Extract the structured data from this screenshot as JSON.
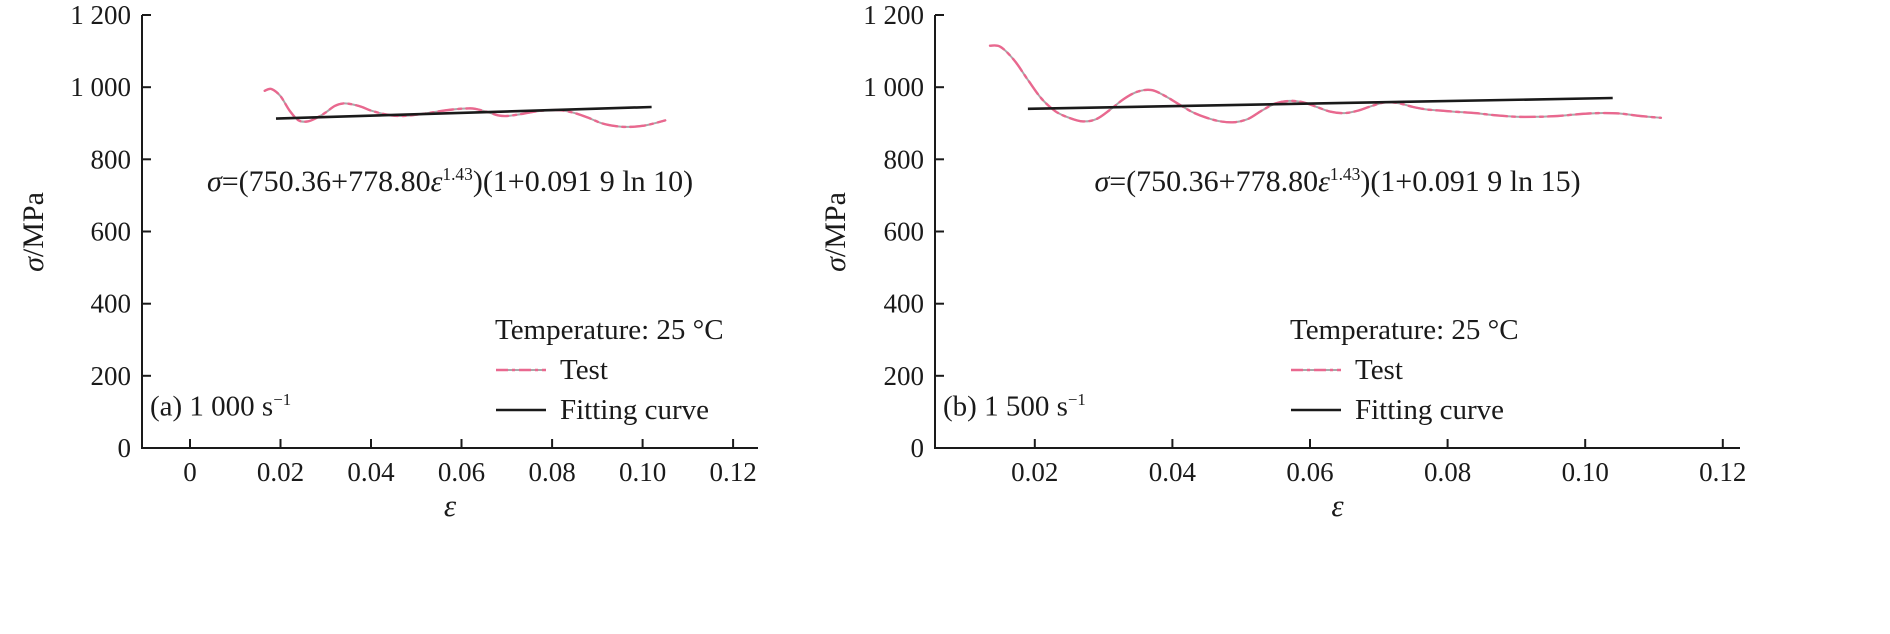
{
  "chart_data": [
    {
      "type": "line",
      "panel_label_text": "(a) 1 000 s",
      "panel_label_sup": "−1",
      "eq_sigma": "σ",
      "eq_mid": "=(750.36+778.80",
      "eq_epsilon": "ε",
      "eq_sup": "1.43",
      "eq_suffix": ")(1+0.091 9 ln 10)",
      "xlabel": "ε",
      "ylabel_symbol": "σ",
      "ylabel_unit": "/MPa",
      "xlim": [
        -0.0106,
        0.1255
      ],
      "ylim": [
        0,
        1200
      ],
      "xticks": [
        0,
        0.02,
        0.04,
        0.06,
        0.08,
        0.1,
        0.12
      ],
      "xtick_labels": [
        "0",
        "0.02",
        "0.04",
        "0.06",
        "0.08",
        "0.10",
        "0.12"
      ],
      "yticks": [
        0,
        200,
        400,
        600,
        800,
        1000,
        1200
      ],
      "ytick_labels": [
        "0",
        "200",
        "400",
        "600",
        "800",
        "1 000",
        "1 200"
      ],
      "grid": "off",
      "legend_position": "inside-bottom-right",
      "legend": {
        "temperature": "Temperature: 25 °C",
        "test": "Test",
        "fit": "Fitting curve"
      },
      "colors": {
        "test": "#e9688f",
        "test_shadow": "#a8a8a8",
        "fit": "#1a1a1a",
        "axis": "#1a1a1a"
      },
      "series": [
        {
          "name": "Test",
          "style": "dashdot",
          "x": [
            0.0165,
            0.018,
            0.02,
            0.022,
            0.024,
            0.026,
            0.028,
            0.03,
            0.032,
            0.034,
            0.036,
            0.038,
            0.04,
            0.043,
            0.046,
            0.049,
            0.052,
            0.055,
            0.058,
            0.061,
            0.063,
            0.066,
            0.068,
            0.07,
            0.073,
            0.076,
            0.079,
            0.082,
            0.085,
            0.088,
            0.091,
            0.094,
            0.097,
            0.1,
            0.102,
            0.105
          ],
          "y": [
            990,
            995,
            975,
            935,
            908,
            905,
            915,
            930,
            948,
            955,
            952,
            945,
            935,
            925,
            920,
            922,
            927,
            933,
            938,
            941,
            940,
            930,
            922,
            920,
            925,
            932,
            936,
            936,
            928,
            915,
            900,
            892,
            890,
            893,
            898,
            908
          ]
        },
        {
          "name": "Fitting curve",
          "style": "solid",
          "x": [
            0.019,
            0.102
          ],
          "y": [
            913,
            945
          ]
        }
      ]
    },
    {
      "type": "line",
      "panel_label_text": "(b) 1 500 s",
      "panel_label_sup": "−1",
      "eq_sigma": "σ",
      "eq_mid": "=(750.36+778.80",
      "eq_epsilon": "ε",
      "eq_sup": "1.43",
      "eq_suffix": ")(1+0.091 9 ln 15)",
      "xlabel": "ε",
      "ylabel_symbol": "σ",
      "ylabel_unit": "/MPa",
      "xlim": [
        0.0055,
        0.1225
      ],
      "ylim": [
        0,
        1200
      ],
      "xticks": [
        0.02,
        0.04,
        0.06,
        0.08,
        0.1,
        0.12
      ],
      "xtick_labels": [
        "0.02",
        "0.04",
        "0.06",
        "0.08",
        "0.10",
        "0.12"
      ],
      "yticks": [
        0,
        200,
        400,
        600,
        800,
        1000,
        1200
      ],
      "ytick_labels": [
        "0",
        "200",
        "400",
        "600",
        "800",
        "1 000",
        "1 200"
      ],
      "grid": "off",
      "legend_position": "inside-bottom-right",
      "legend": {
        "temperature": "Temperature: 25 °C",
        "test": "Test",
        "fit": "Fitting curve"
      },
      "colors": {
        "test": "#e9688f",
        "test_shadow": "#a8a8a8",
        "fit": "#1a1a1a",
        "axis": "#1a1a1a"
      },
      "series": [
        {
          "name": "Test",
          "style": "dashdot",
          "x": [
            0.0135,
            0.015,
            0.017,
            0.019,
            0.021,
            0.023,
            0.025,
            0.027,
            0.029,
            0.031,
            0.033,
            0.035,
            0.037,
            0.039,
            0.041,
            0.043,
            0.045,
            0.047,
            0.049,
            0.051,
            0.053,
            0.055,
            0.057,
            0.059,
            0.061,
            0.063,
            0.065,
            0.067,
            0.069,
            0.071,
            0.073,
            0.075,
            0.077,
            0.079,
            0.081,
            0.084,
            0.087,
            0.09,
            0.093,
            0.096,
            0.099,
            0.102,
            0.105,
            0.108,
            0.111
          ],
          "y": [
            1115,
            1112,
            1075,
            1020,
            968,
            933,
            915,
            905,
            912,
            938,
            968,
            988,
            992,
            975,
            952,
            930,
            915,
            905,
            903,
            912,
            935,
            955,
            962,
            958,
            945,
            932,
            928,
            935,
            948,
            958,
            955,
            945,
            938,
            935,
            932,
            928,
            922,
            918,
            918,
            920,
            925,
            928,
            927,
            920,
            915
          ]
        },
        {
          "name": "Fitting curve",
          "style": "solid",
          "x": [
            0.019,
            0.104
          ],
          "y": [
            940,
            970
          ]
        }
      ]
    }
  ]
}
